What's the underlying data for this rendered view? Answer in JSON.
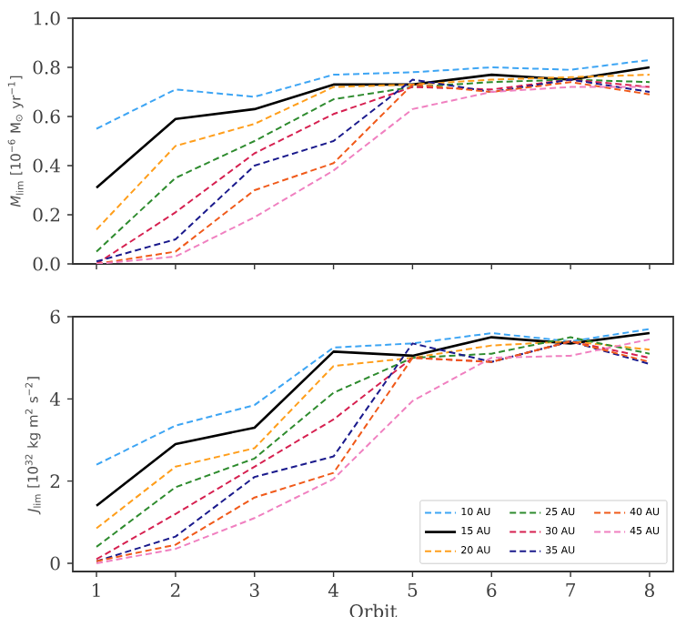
{
  "chart_data": [
    {
      "type": "line",
      "ylabel": "*M*$_{lim}$ [10$^{−6}$ M$_{⊙}$ yr$^{−1}$]",
      "x": [
        1,
        2,
        3,
        4,
        5,
        6,
        7,
        8
      ],
      "xlim": [
        0.7,
        8.3
      ],
      "xticks": [
        1,
        2,
        3,
        4,
        5,
        6,
        7,
        8
      ],
      "ylim": [
        0,
        1
      ],
      "yticks": [
        {
          "value": 0,
          "label": "0.0"
        },
        {
          "value": 0.2,
          "label": "0.2"
        },
        {
          "value": 0.4,
          "label": "0.4"
        },
        {
          "value": 0.6,
          "label": "0.6"
        },
        {
          "value": 0.8,
          "label": "0.8"
        },
        {
          "value": 1,
          "label": "1.0"
        }
      ],
      "tick_labels": "y",
      "marker": "none",
      "series": [
        {
          "color": "#3da5f4",
          "line_style": "dashed",
          "values": [
            0.55,
            0.71,
            0.68,
            0.77,
            0.78,
            0.8,
            0.79,
            0.83
          ]
        },
        {
          "color": "#000000",
          "line_style": "solid",
          "values": [
            0.31,
            0.59,
            0.63,
            0.73,
            0.73,
            0.77,
            0.75,
            0.8
          ]
        },
        {
          "color": "#ff9e1b",
          "line_style": "dashed",
          "values": [
            0.14,
            0.48,
            0.57,
            0.72,
            0.73,
            0.75,
            0.76,
            0.77
          ]
        },
        {
          "color": "#2e8b2e",
          "line_style": "dashed",
          "values": [
            0.05,
            0.35,
            0.5,
            0.67,
            0.72,
            0.74,
            0.75,
            0.74
          ]
        },
        {
          "color": "#d62050",
          "line_style": "dashed",
          "values": [
            0.0,
            0.21,
            0.45,
            0.61,
            0.72,
            0.71,
            0.75,
            0.72
          ]
        },
        {
          "color": "#1a1a8c",
          "line_style": "dashed",
          "values": [
            0.01,
            0.1,
            0.4,
            0.5,
            0.75,
            0.7,
            0.75,
            0.7
          ]
        },
        {
          "color": "#f05a1a",
          "line_style": "dashed",
          "values": [
            0.0,
            0.05,
            0.3,
            0.41,
            0.73,
            0.7,
            0.74,
            0.69
          ]
        },
        {
          "color": "#f080c0",
          "line_style": "dashed",
          "values": [
            0.0,
            0.03,
            0.19,
            0.38,
            0.63,
            0.7,
            0.72,
            0.72
          ]
        }
      ]
    },
    {
      "type": "line",
      "xlabel": "Orbit",
      "ylabel": "*J*$_{lim}$ [10$^{32}$ kg m$^{2}$ s$^{−2}$]",
      "x": [
        1,
        2,
        3,
        4,
        5,
        6,
        7,
        8
      ],
      "xlim": [
        0.7,
        8.3
      ],
      "xticks": [
        1,
        2,
        3,
        4,
        5,
        6,
        7,
        8
      ],
      "ylim": [
        -0.2,
        6
      ],
      "yticks": [
        0,
        2,
        4,
        6
      ],
      "marker": "none",
      "legend": "bottom right",
      "series": [
        {
          "name": "10 AU",
          "color": "#3da5f4",
          "line_style": "dashed",
          "values": [
            2.4,
            3.35,
            3.85,
            5.25,
            5.35,
            5.6,
            5.4,
            5.7
          ]
        },
        {
          "name": "15 AU",
          "color": "#000000",
          "line_style": "solid",
          "values": [
            1.4,
            2.9,
            3.3,
            5.15,
            5.05,
            5.5,
            5.35,
            5.6
          ]
        },
        {
          "name": "20 AU",
          "color": "#ff9e1b",
          "line_style": "dashed",
          "values": [
            0.85,
            2.35,
            2.8,
            4.8,
            5.0,
            5.3,
            5.4,
            5.2
          ]
        },
        {
          "name": "25 AU",
          "color": "#2e8b2e",
          "line_style": "dashed",
          "values": [
            0.4,
            1.85,
            2.55,
            4.15,
            5.0,
            5.1,
            5.5,
            5.1
          ]
        },
        {
          "name": "30 AU",
          "color": "#d62050",
          "line_style": "dashed",
          "values": [
            0.1,
            1.2,
            2.35,
            3.5,
            5.0,
            4.9,
            5.4,
            5.0
          ]
        },
        {
          "name": "35 AU",
          "color": "#1a1a8c",
          "line_style": "dashed",
          "values": [
            0.05,
            0.65,
            2.1,
            2.6,
            5.35,
            4.9,
            5.4,
            4.85
          ]
        },
        {
          "name": "40 AU",
          "color": "#f05a1a",
          "line_style": "dashed",
          "values": [
            0.05,
            0.45,
            1.6,
            2.2,
            5.0,
            4.9,
            5.4,
            4.9
          ]
        },
        {
          "name": "45 AU",
          "color": "#f080c0",
          "line_style": "dashed",
          "values": [
            0.0,
            0.35,
            1.1,
            2.05,
            3.95,
            5.0,
            5.05,
            5.45
          ]
        }
      ]
    }
  ]
}
